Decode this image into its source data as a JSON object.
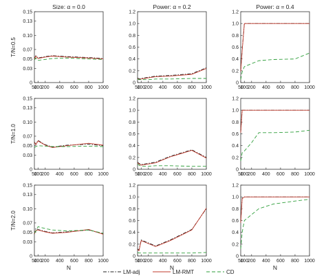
{
  "figure": {
    "col_titles": [
      "Size: α = 0.0",
      "Power: α = 0.2",
      "Power: α = 0.4"
    ],
    "row_labels": [
      "T/N=0.5",
      "T/N=1.0",
      "T/N=2.0"
    ],
    "xlabel": "N",
    "legend": [
      {
        "name": "LM-adj",
        "color": "#222222",
        "dash": "dashdot"
      },
      {
        "name": "LM-RMT",
        "color": "#c0392b",
        "dash": "solid"
      },
      {
        "name": "CD",
        "color": "#2e9e3a",
        "dash": "dashed"
      }
    ]
  },
  "chart_data": [
    {
      "type": "line",
      "title": "Size: α = 0.0",
      "ylabel": "T/N=0.5",
      "xlabel": "",
      "x": [
        50,
        70,
        100,
        200,
        300,
        500,
        800,
        1000
      ],
      "xticks": [
        50,
        100,
        200,
        400,
        600,
        800,
        1000
      ],
      "xlim": [
        50,
        1000
      ],
      "ylim": [
        0,
        0.15
      ],
      "yticks": [
        0,
        0.03,
        0.05,
        0.07,
        0.1,
        0.13,
        0.15
      ],
      "series": [
        {
          "name": "LM-adj",
          "values": [
            0.051,
            0.057,
            0.052,
            0.055,
            0.057,
            0.055,
            0.053,
            0.051
          ]
        },
        {
          "name": "LM-RMT",
          "values": [
            0.05,
            0.056,
            0.051,
            0.054,
            0.056,
            0.054,
            0.052,
            0.05
          ]
        },
        {
          "name": "CD",
          "values": [
            0.048,
            0.052,
            0.047,
            0.049,
            0.051,
            0.052,
            0.05,
            0.049
          ]
        }
      ]
    },
    {
      "type": "line",
      "title": "Power: α = 0.2",
      "ylabel": "",
      "xlabel": "",
      "x": [
        50,
        70,
        100,
        200,
        300,
        500,
        800,
        1000
      ],
      "xticks": [
        50,
        100,
        200,
        400,
        600,
        800,
        1000
      ],
      "xlim": [
        50,
        1000
      ],
      "ylim": [
        0,
        1.2
      ],
      "yticks": [
        0,
        0.2,
        0.4,
        0.6,
        0.8,
        1.0,
        1.2
      ],
      "series": [
        {
          "name": "LM-adj",
          "values": [
            0.08,
            0.06,
            0.07,
            0.09,
            0.11,
            0.12,
            0.15,
            0.25
          ]
        },
        {
          "name": "LM-RMT",
          "values": [
            0.07,
            0.05,
            0.06,
            0.08,
            0.1,
            0.11,
            0.14,
            0.24
          ]
        },
        {
          "name": "CD",
          "values": [
            0.06,
            0.05,
            0.05,
            0.05,
            0.06,
            0.06,
            0.07,
            0.07
          ]
        }
      ]
    },
    {
      "type": "line",
      "title": "Power: α = 0.4",
      "ylabel": "",
      "xlabel": "",
      "x": [
        50,
        70,
        100,
        200,
        300,
        500,
        800,
        1000
      ],
      "xticks": [
        50,
        100,
        200,
        400,
        600,
        800,
        1000
      ],
      "xlim": [
        50,
        1000
      ],
      "ylim": [
        0,
        1.2
      ],
      "yticks": [
        0,
        0.2,
        0.4,
        0.6,
        0.8,
        1.0,
        1.2
      ],
      "series": [
        {
          "name": "LM-adj",
          "values": [
            0.2,
            0.55,
            1.0,
            1.0,
            1.0,
            1.0,
            1.0,
            1.0
          ]
        },
        {
          "name": "LM-RMT",
          "values": [
            0.19,
            0.54,
            1.0,
            1.0,
            1.0,
            1.0,
            1.0,
            1.0
          ]
        },
        {
          "name": "CD",
          "values": [
            0.05,
            0.18,
            0.27,
            0.32,
            0.37,
            0.39,
            0.4,
            0.5
          ]
        }
      ]
    },
    {
      "type": "line",
      "title": "",
      "ylabel": "T/N=1.0",
      "xlabel": "",
      "x": [
        50,
        70,
        100,
        200,
        300,
        500,
        800,
        1000
      ],
      "xticks": [
        50,
        100,
        200,
        400,
        600,
        800,
        1000
      ],
      "xlim": [
        50,
        1000
      ],
      "ylim": [
        0,
        0.15
      ],
      "yticks": [
        0,
        0.03,
        0.05,
        0.07,
        0.1,
        0.13,
        0.15
      ],
      "series": [
        {
          "name": "LM-adj",
          "values": [
            0.058,
            0.053,
            0.061,
            0.052,
            0.047,
            0.051,
            0.053,
            0.05
          ]
        },
        {
          "name": "LM-RMT",
          "values": [
            0.057,
            0.052,
            0.06,
            0.051,
            0.046,
            0.05,
            0.055,
            0.051
          ]
        },
        {
          "name": "CD",
          "values": [
            0.046,
            0.048,
            0.05,
            0.049,
            0.048,
            0.048,
            0.049,
            0.048
          ]
        }
      ]
    },
    {
      "type": "line",
      "title": "",
      "ylabel": "",
      "xlabel": "",
      "x": [
        50,
        70,
        100,
        200,
        300,
        500,
        800,
        1000
      ],
      "xticks": [
        50,
        100,
        200,
        400,
        600,
        800,
        1000
      ],
      "xlim": [
        50,
        1000
      ],
      "ylim": [
        0,
        1.2
      ],
      "yticks": [
        0,
        0.2,
        0.4,
        0.6,
        0.8,
        1.0,
        1.2
      ],
      "series": [
        {
          "name": "LM-adj",
          "values": [
            0.12,
            0.1,
            0.08,
            0.1,
            0.12,
            0.22,
            0.33,
            0.2
          ]
        },
        {
          "name": "LM-RMT",
          "values": [
            0.11,
            0.09,
            0.07,
            0.09,
            0.11,
            0.21,
            0.32,
            0.19
          ]
        },
        {
          "name": "CD",
          "values": [
            0.09,
            0.07,
            0.05,
            0.05,
            0.06,
            0.06,
            0.05,
            0.05
          ]
        }
      ]
    },
    {
      "type": "line",
      "title": "",
      "ylabel": "",
      "xlabel": "",
      "x": [
        50,
        70,
        100,
        200,
        300,
        500,
        800,
        1000
      ],
      "xticks": [
        50,
        100,
        200,
        400,
        600,
        800,
        1000
      ],
      "xlim": [
        50,
        1000
      ],
      "ylim": [
        0,
        1.2
      ],
      "yticks": [
        0,
        0.2,
        0.4,
        0.6,
        0.8,
        1.0,
        1.2
      ],
      "series": [
        {
          "name": "LM-adj",
          "values": [
            0.63,
            1.0,
            1.0,
            1.0,
            1.0,
            1.0,
            1.0,
            1.0
          ]
        },
        {
          "name": "LM-RMT",
          "values": [
            0.62,
            1.0,
            1.0,
            1.0,
            1.0,
            1.0,
            1.0,
            1.0
          ]
        },
        {
          "name": "CD",
          "values": [
            0.14,
            0.28,
            0.31,
            0.45,
            0.62,
            0.62,
            0.63,
            0.66
          ]
        }
      ]
    },
    {
      "type": "line",
      "title": "",
      "ylabel": "T/N=2.0",
      "xlabel": "N",
      "x": [
        50,
        70,
        100,
        200,
        300,
        500,
        800,
        1000
      ],
      "xticks": [
        50,
        100,
        200,
        400,
        600,
        800,
        1000
      ],
      "xlim": [
        50,
        1000
      ],
      "ylim": [
        0,
        0.15
      ],
      "yticks": [
        0,
        0.03,
        0.05,
        0.07,
        0.1,
        0.13,
        0.15
      ],
      "series": [
        {
          "name": "LM-adj",
          "values": [
            0.046,
            0.058,
            0.056,
            0.052,
            0.049,
            0.051,
            0.055,
            0.047
          ]
        },
        {
          "name": "LM-RMT",
          "values": [
            0.047,
            0.054,
            0.055,
            0.051,
            0.048,
            0.05,
            0.056,
            0.046
          ]
        },
        {
          "name": "CD",
          "values": [
            0.049,
            0.052,
            0.062,
            0.058,
            0.055,
            0.053,
            0.055,
            0.048
          ]
        }
      ]
    },
    {
      "type": "line",
      "title": "",
      "ylabel": "",
      "xlabel": "N",
      "x": [
        50,
        70,
        100,
        200,
        300,
        500,
        800,
        1000
      ],
      "xticks": [
        50,
        100,
        200,
        400,
        600,
        800,
        1000
      ],
      "xlim": [
        50,
        1000
      ],
      "ylim": [
        0,
        1.2
      ],
      "yticks": [
        0,
        0.2,
        0.4,
        0.6,
        0.8,
        1.0,
        1.2
      ],
      "series": [
        {
          "name": "LM-adj",
          "values": [
            0.12,
            0.1,
            0.27,
            0.22,
            0.17,
            0.27,
            0.45,
            0.8
          ]
        },
        {
          "name": "LM-RMT",
          "values": [
            0.11,
            0.09,
            0.26,
            0.21,
            0.16,
            0.26,
            0.44,
            0.81
          ]
        },
        {
          "name": "CD",
          "values": [
            0.06,
            0.05,
            0.05,
            0.05,
            0.05,
            0.05,
            0.05,
            0.06
          ]
        }
      ]
    },
    {
      "type": "line",
      "title": "",
      "ylabel": "",
      "xlabel": "N",
      "x": [
        50,
        70,
        100,
        200,
        300,
        500,
        800,
        1000
      ],
      "xticks": [
        50,
        100,
        200,
        400,
        600,
        800,
        1000
      ],
      "xlim": [
        50,
        1000
      ],
      "ylim": [
        0,
        1.2
      ],
      "yticks": [
        0,
        0.2,
        0.4,
        0.6,
        0.8,
        1.0,
        1.2
      ],
      "series": [
        {
          "name": "LM-adj",
          "values": [
            0.57,
            0.98,
            1.0,
            1.0,
            1.0,
            1.0,
            1.0,
            1.0
          ]
        },
        {
          "name": "LM-RMT",
          "values": [
            0.56,
            0.97,
            1.0,
            1.0,
            1.0,
            1.0,
            1.0,
            1.0
          ]
        },
        {
          "name": "CD",
          "values": [
            0.12,
            0.4,
            0.6,
            0.7,
            0.8,
            0.88,
            0.93,
            0.96
          ]
        }
      ]
    }
  ]
}
